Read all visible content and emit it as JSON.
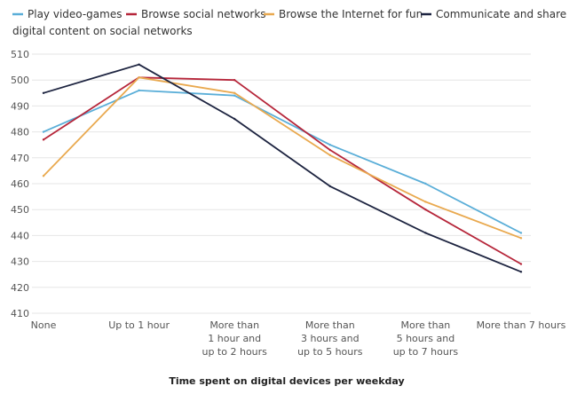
{
  "chart_data": {
    "type": "line",
    "title": "",
    "xlabel": "Time spent on digital devices per weekday",
    "ylabel": "",
    "ylim": [
      410,
      510
    ],
    "yticks": [
      410,
      420,
      430,
      440,
      450,
      460,
      470,
      480,
      490,
      500,
      510
    ],
    "grid": "horizontal",
    "legend_position": "top-left",
    "categories": [
      [
        "None"
      ],
      [
        "Up to 1 hour"
      ],
      [
        "More than",
        "1 hour and",
        "up to 2 hours"
      ],
      [
        "More than",
        "3 hours and",
        "up to 5 hours"
      ],
      [
        "More than",
        "5 hours and",
        "up to 7 hours"
      ],
      [
        "More than 7 hours"
      ]
    ],
    "series": [
      {
        "name": "Play video-games",
        "color": "#5aaed8",
        "values": [
          480,
          496,
          494,
          475,
          460,
          441
        ]
      },
      {
        "name": "Browse social networks",
        "color": "#b6263a",
        "values": [
          477,
          501,
          500,
          473,
          450,
          429
        ]
      },
      {
        "name": "Browse the Internet for fun",
        "color": "#e9a94f",
        "values": [
          463,
          501,
          495,
          471,
          453,
          439
        ]
      },
      {
        "name": "Communicate and share digital content on social networks",
        "color": "#1d2440",
        "values": [
          495,
          506,
          485,
          459,
          441,
          426
        ]
      }
    ]
  }
}
